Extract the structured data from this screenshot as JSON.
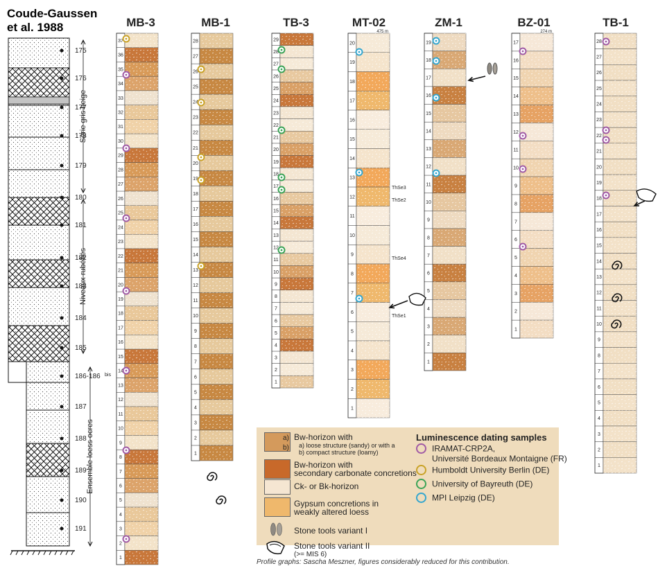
{
  "reference": {
    "title_line1": "Coude-Gaussen",
    "title_line2": "et al. 1988"
  },
  "cg_column": {
    "depths": [
      "175",
      "176",
      "177",
      "178",
      "179",
      "180",
      "181",
      "182",
      "183",
      "184",
      "185",
      "186-186",
      "187",
      "188",
      "189",
      "190",
      "191"
    ],
    "bis_label": "bis",
    "groups": [
      {
        "label": "Série gris beige"
      },
      {
        "label": "Niveaux rubéfiés"
      },
      {
        "label": "Ensemble loess ocres"
      }
    ]
  },
  "profiles": [
    {
      "name": "MB-3",
      "elev": "",
      "units": [
        "37",
        "36",
        "35",
        "34",
        "33",
        "32",
        "31",
        "30",
        "29",
        "28",
        "27",
        "26",
        "25",
        "24",
        "23",
        "22",
        "21",
        "20",
        "19",
        "18",
        "17",
        "16",
        "15",
        "14",
        "13",
        "12",
        "11",
        "10",
        "9",
        "8",
        "7",
        "6",
        "5",
        "4",
        "3",
        "2",
        "1"
      ]
    },
    {
      "name": "MB-1",
      "elev": "",
      "units": [
        "28",
        "27",
        "26",
        "25",
        "24",
        "23",
        "22",
        "21",
        "20",
        "19",
        "18",
        "17",
        "16",
        "15",
        "14",
        "13",
        "12",
        "11",
        "10",
        "9",
        "8",
        "7",
        "6",
        "5",
        "4",
        "3",
        "2",
        "1"
      ]
    },
    {
      "name": "TB-3",
      "elev": "",
      "units": [
        "29",
        "28",
        "27",
        "26",
        "25",
        "24",
        "23",
        "22",
        "21",
        "20",
        "19",
        "18",
        "17",
        "16",
        "15",
        "14",
        "13",
        "12",
        "11",
        "10",
        "9",
        "8",
        "7",
        "6",
        "5",
        "4",
        "3",
        "2",
        "1"
      ]
    },
    {
      "name": "MT-02",
      "elev": "475 m",
      "units": [
        "20",
        "19",
        "18",
        "17",
        "16",
        "15",
        "14",
        "13",
        "12",
        "11",
        "10",
        "9",
        "8",
        "7",
        "6",
        "5",
        "4",
        "3",
        "2",
        "1"
      ]
    },
    {
      "name": "ZM-1",
      "elev": "",
      "units": [
        "19",
        "18",
        "17",
        "16",
        "15",
        "14",
        "13",
        "12",
        "11",
        "10",
        "9",
        "8",
        "7",
        "6",
        "5",
        "4",
        "3",
        "2",
        "1"
      ]
    },
    {
      "name": "BZ-01",
      "elev": "274 m",
      "units": [
        "17",
        "16",
        "15",
        "14",
        "13",
        "12",
        "11",
        "10",
        "9",
        "8",
        "7",
        "6",
        "5",
        "4",
        "3",
        "2",
        "1"
      ]
    },
    {
      "name": "TB-1",
      "elev": "",
      "units": [
        "28",
        "27",
        "26",
        "25",
        "24",
        "23",
        "22",
        "21",
        "20",
        "19",
        "18",
        "17",
        "16",
        "15",
        "14",
        "13",
        "12",
        "11",
        "10",
        "9",
        "8",
        "7",
        "6",
        "5",
        "4",
        "3",
        "2",
        "1"
      ]
    }
  ],
  "mt02_labels": [
    "ThSe3",
    "ThSe2",
    "ThSe4",
    "ThSe1"
  ],
  "legend": {
    "bw_a_label": "a)",
    "bw_b_label": "b)",
    "bw_title": "Bw-horizon with",
    "bw_a": "a) loose structure (sandy) or with a",
    "bw_b": "b) compact structure (loamy)",
    "bw_carb_1": "Bw-horizon with",
    "bw_carb_2": "secondary carbonate concretions",
    "ck": "Ck- or Bk-horizon",
    "gyps_1": "Gypsum concretions in",
    "gyps_2": "weakly altered loess",
    "tools1": "Stone tools variant I",
    "tools2_1": "Stone tools variant II",
    "tools2_2": "(>= MIS 6)"
  },
  "luminescence": {
    "title": "Luminescence dating samples",
    "labs": [
      {
        "name": "IRAMAT-CRP2A,",
        "name2": "Université Bordeaux Montaigne (FR)",
        "color": "#a05aa5"
      },
      {
        "name": "Humboldt University Berlin (DE)",
        "name2": "",
        "color": "#c9a227"
      },
      {
        "name": "University of Bayreuth (DE)",
        "name2": "",
        "color": "#3aa356"
      },
      {
        "name": "MPI Leipzig (DE)",
        "name2": "",
        "color": "#33a6cf"
      }
    ]
  },
  "colors": {
    "bw_a": "#d9a066",
    "bw_b": "#c8773a",
    "bw_carb": "#c86a2a",
    "ck": "#f3e4cf",
    "gyps": "#f0b870",
    "cream": "#efd9b4",
    "legend_bg": "#efdcbc"
  },
  "credit": "Profile graphs: Sascha Meszner, figures considerably reduced for this contribution."
}
